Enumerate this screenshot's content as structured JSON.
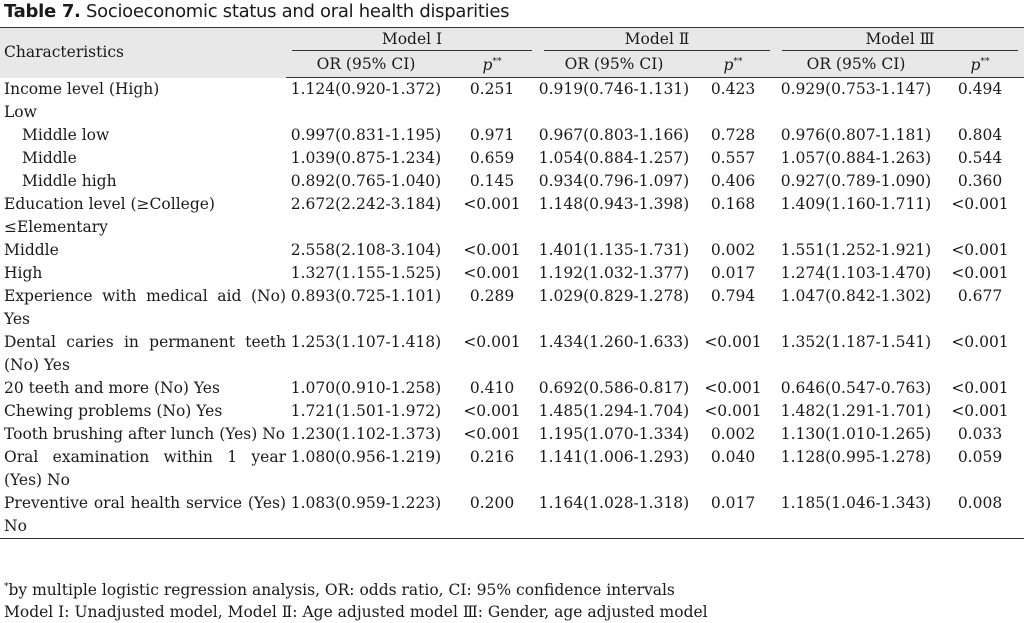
{
  "title_bold": "Table 7.",
  "title_rest": " Socioeconomic status and oral health disparities",
  "header": {
    "characteristics": "Characteristics",
    "models": [
      "Model Ⅰ",
      "Model Ⅱ",
      "Model Ⅲ"
    ],
    "or_label": "OR (95% CI)",
    "p_label": "p",
    "p_sup": "**"
  },
  "rows": [
    {
      "label": "Income level (High)",
      "indent": false,
      "m1_or": "1.124(0.920-1.372)",
      "m1_p": "0.251",
      "m2_or": "0.919(0.746-1.131)",
      "m2_p": "0.423",
      "m3_or": "0.929(0.753-1.147)",
      "m3_p": "0.494"
    },
    {
      "label": "Low",
      "indent": false,
      "m1_or": "",
      "m1_p": "",
      "m2_or": "",
      "m2_p": "",
      "m3_or": "",
      "m3_p": ""
    },
    {
      "label": "Middle low",
      "indent": true,
      "m1_or": "0.997(0.831-1.195)",
      "m1_p": "0.971",
      "m2_or": "0.967(0.803-1.166)",
      "m2_p": "0.728",
      "m3_or": "0.976(0.807-1.181)",
      "m3_p": "0.804"
    },
    {
      "label": "Middle",
      "indent": true,
      "m1_or": "1.039(0.875-1.234)",
      "m1_p": "0.659",
      "m2_or": "1.054(0.884-1.257)",
      "m2_p": "0.557",
      "m3_or": "1.057(0.884-1.263)",
      "m3_p": "0.544"
    },
    {
      "label": "Middle high",
      "indent": true,
      "m1_or": "0.892(0.765-1.040)",
      "m1_p": "0.145",
      "m2_or": "0.934(0.796-1.097)",
      "m2_p": "0.406",
      "m3_or": "0.927(0.789-1.090)",
      "m3_p": "0.360"
    },
    {
      "label": "Education level (≥College)",
      "indent": false,
      "m1_or": "2.672(2.242-3.184)",
      "m1_p": "<0.001",
      "m2_or": "1.148(0.943-1.398)",
      "m2_p": "0.168",
      "m3_or": "1.409(1.160-1.711)",
      "m3_p": "<0.001"
    },
    {
      "label": "≤Elementary",
      "indent": false,
      "m1_or": "",
      "m1_p": "",
      "m2_or": "",
      "m2_p": "",
      "m3_or": "",
      "m3_p": ""
    },
    {
      "label": "Middle",
      "indent": false,
      "m1_or": "2.558(2.108-3.104)",
      "m1_p": "<0.001",
      "m2_or": "1.401(1.135-1.731)",
      "m2_p": "0.002",
      "m3_or": "1.551(1.252-1.921)",
      "m3_p": "<0.001"
    },
    {
      "label": "High",
      "indent": false,
      "m1_or": "1.327(1.155-1.525)",
      "m1_p": "<0.001",
      "m2_or": "1.192(1.032-1.377)",
      "m2_p": "0.017",
      "m3_or": "1.274(1.103-1.470)",
      "m3_p": "<0.001"
    },
    {
      "label": "Experience with medical aid (No) Yes",
      "indent": false,
      "wrap": true,
      "m1_or": "0.893(0.725-1.101)",
      "m1_p": "0.289",
      "m2_or": "1.029(0.829-1.278)",
      "m2_p": "0.794",
      "m3_or": "1.047(0.842-1.302)",
      "m3_p": "0.677"
    },
    {
      "label": "Dental caries in permanent teeth (No) Yes",
      "indent": false,
      "wrap": true,
      "m1_or": "1.253(1.107-1.418)",
      "m1_p": "<0.001",
      "m2_or": "1.434(1.260-1.633)",
      "m2_p": "<0.001",
      "m3_or": "1.352(1.187-1.541)",
      "m3_p": "<0.001"
    },
    {
      "label": "20 teeth and more (No) Yes",
      "indent": false,
      "m1_or": "1.070(0.910-1.258)",
      "m1_p": "0.410",
      "m2_or": "0.692(0.586-0.817)",
      "m2_p": "<0.001",
      "m3_or": "0.646(0.547-0.763)",
      "m3_p": "<0.001"
    },
    {
      "label": "Chewing problems (No) Yes",
      "indent": false,
      "m1_or": "1.721(1.501-1.972)",
      "m1_p": "<0.001",
      "m2_or": "1.485(1.294-1.704)",
      "m2_p": "<0.001",
      "m3_or": "1.482(1.291-1.701)",
      "m3_p": "<0.001"
    },
    {
      "label": "Tooth brushing after lunch (Yes) No",
      "indent": false,
      "wrap": true,
      "m1_or": "1.230(1.102-1.373)",
      "m1_p": "<0.001",
      "m2_or": "1.195(1.070-1.334)",
      "m2_p": "0.002",
      "m3_or": "1.130(1.010-1.265)",
      "m3_p": "0.033"
    },
    {
      "label": "Oral examination within 1 year (Yes) No",
      "indent": false,
      "wrap": true,
      "m1_or": "1.080(0.956-1.219)",
      "m1_p": "0.216",
      "m2_or": "1.141(1.006-1.293)",
      "m2_p": "0.040",
      "m3_or": "1.128(0.995-1.278)",
      "m3_p": "0.059"
    },
    {
      "label": "Preventive oral health service (Yes) No",
      "indent": false,
      "wrap": true,
      "m1_or": "1.083(0.959-1.223)",
      "m1_p": "0.200",
      "m2_or": "1.164(1.028-1.318)",
      "m2_p": "0.017",
      "m3_or": "1.185(1.046-1.343)",
      "m3_p": "0.008"
    }
  ],
  "footnote_mark": "*",
  "footnote_1": "by multiple logistic regression analysis, OR: odds ratio, CI: 95% confidence intervals",
  "footnote_2": "Model Ⅰ: Unadjusted model, Model Ⅱ: Age adjusted model Ⅲ: Gender, age adjusted model"
}
